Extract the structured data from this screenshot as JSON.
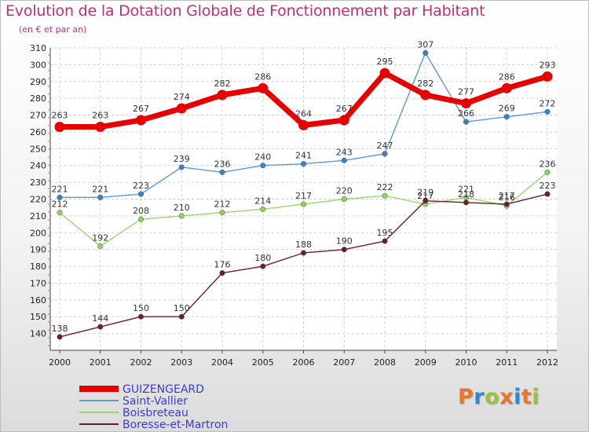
{
  "title": "Evolution de la Dotation Globale de Fonctionnement par Habitant",
  "subtitle": "(en € et par an)",
  "brand": {
    "letters": [
      "P",
      "r",
      "o",
      "x",
      "i",
      "t",
      "i"
    ],
    "colors": [
      "#e8762d",
      "#2f86d1",
      "#9ac23c",
      "#e8762d",
      "#2f86d1",
      "#e8762d",
      "#9ac23c"
    ]
  },
  "chart_data": {
    "type": "line",
    "title": "Evolution de la Dotation Globale de Fonctionnement par Habitant",
    "ylabel": "(en € et par an)",
    "xlabel": "",
    "x": [
      "2000",
      "2001",
      "2002",
      "2003",
      "2004",
      "2005",
      "2006",
      "2007",
      "2008",
      "2009",
      "2010",
      "2011",
      "2012"
    ],
    "ylim": [
      130,
      310
    ],
    "yticks": [
      140,
      150,
      160,
      170,
      180,
      190,
      200,
      210,
      220,
      230,
      240,
      250,
      260,
      270,
      280,
      290,
      300,
      310
    ],
    "grid": true,
    "legend_position": "bottom-left",
    "series": [
      {
        "name": "GUIZENGEARD",
        "color": "#e60000",
        "marker_color": "#e60000",
        "values": [
          263,
          263,
          267,
          274,
          282,
          286,
          264,
          267,
          295,
          282,
          277,
          286,
          293
        ]
      },
      {
        "name": "Saint-Vallier",
        "color": "#5b9bd5",
        "marker_color": "#3c82c4",
        "values": [
          221,
          221,
          223,
          239,
          236,
          240,
          241,
          243,
          247,
          307,
          266,
          269,
          272
        ]
      },
      {
        "name": "Boisbreteau",
        "color": "#97d86d",
        "marker_color": "#8fd35a",
        "values": [
          212,
          192,
          208,
          210,
          212,
          214,
          217,
          220,
          222,
          217,
          221,
          216,
          236
        ]
      },
      {
        "name": "Boresse-et-Martron",
        "color": "#6b1f24",
        "marker_color": "#6b1f24",
        "values": [
          138,
          144,
          150,
          150,
          176,
          180,
          188,
          190,
          195,
          219,
          218,
          217,
          223
        ]
      }
    ]
  }
}
